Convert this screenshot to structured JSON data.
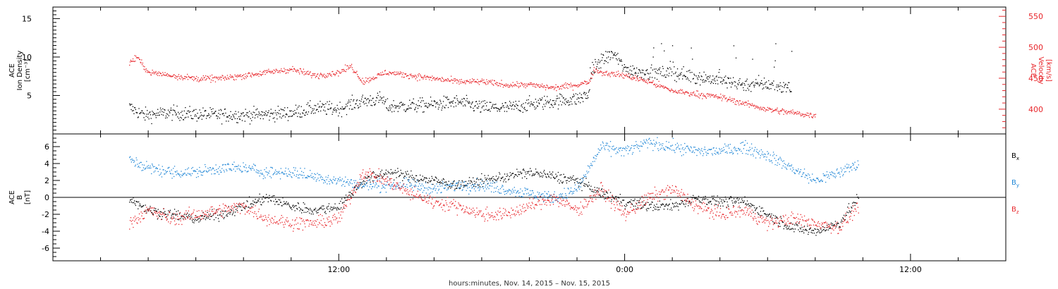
{
  "chart_data": [
    {
      "type": "scatter",
      "panel": "top",
      "ylabel": [
        "ACE",
        "Ion Density",
        "[cm⁻³]"
      ],
      "ylim": [
        0,
        16.5
      ],
      "yticks": [
        5,
        10,
        15
      ],
      "y2label": [
        "ACE",
        "Velocity",
        "[km/s]"
      ],
      "y2lim": [
        360,
        565
      ],
      "y2ticks": [
        400,
        450,
        500,
        550
      ],
      "xticks": [
        {
          "t": 12,
          "label": "12:00"
        },
        {
          "t": 24,
          "label": "0:00"
        },
        {
          "t": 36,
          "label": "12:00"
        }
      ],
      "series": [
        {
          "key": "density",
          "axis": "left",
          "color": "#000000",
          "anchors": [
            [
              3.2,
              3.5
            ],
            [
              3.8,
              2.5
            ],
            [
              5,
              2.8
            ],
            [
              6,
              2.6
            ],
            [
              7,
              2.5
            ],
            [
              8,
              2.5
            ],
            [
              9,
              2.6
            ],
            [
              10,
              2.8
            ],
            [
              11,
              3.4
            ],
            [
              12,
              3.3
            ],
            [
              12.5,
              3.9
            ],
            [
              13,
              4.3
            ],
            [
              13.8,
              4.6
            ],
            [
              14,
              3.6
            ],
            [
              15,
              3.7
            ],
            [
              16,
              3.9
            ],
            [
              17,
              4.2
            ],
            [
              18,
              3.5
            ],
            [
              19,
              3.4
            ],
            [
              20,
              3.9
            ],
            [
              21,
              4.3
            ],
            [
              22,
              4.6
            ],
            [
              22.5,
              5.2
            ],
            [
              22.6,
              8.5
            ],
            [
              23,
              9.5
            ],
            [
              23.5,
              10.5
            ],
            [
              24,
              8.5
            ],
            [
              25,
              8
            ],
            [
              26,
              8
            ],
            [
              27,
              7.5
            ],
            [
              28,
              7
            ],
            [
              29,
              6.5
            ],
            [
              30,
              6.5
            ],
            [
              31,
              6
            ]
          ],
          "noise": 1.3,
          "npoints": 1200
        },
        {
          "key": "velocity",
          "axis": "right",
          "color": "#e8262b",
          "anchors": [
            [
              3.2,
              475
            ],
            [
              3.5,
              485
            ],
            [
              4,
              460
            ],
            [
              5,
              455
            ],
            [
              6,
              450
            ],
            [
              7,
              450
            ],
            [
              8,
              455
            ],
            [
              9,
              460
            ],
            [
              10,
              465
            ],
            [
              11,
              455
            ],
            [
              12,
              460
            ],
            [
              12.5,
              470
            ],
            [
              13,
              445
            ],
            [
              14,
              460
            ],
            [
              15,
              455
            ],
            [
              16,
              450
            ],
            [
              17,
              445
            ],
            [
              18,
              445
            ],
            [
              19,
              440
            ],
            [
              20,
              440
            ],
            [
              21,
              435
            ],
            [
              22,
              440
            ],
            [
              22.5,
              445
            ],
            [
              22.7,
              465
            ],
            [
              23,
              460
            ],
            [
              24,
              455
            ],
            [
              25,
              445
            ],
            [
              26,
              430
            ],
            [
              27,
              425
            ],
            [
              28,
              420
            ],
            [
              29,
              410
            ],
            [
              30,
              400
            ],
            [
              31,
              395
            ],
            [
              32,
              390
            ]
          ],
          "noise": 7,
          "npoints": 1200
        }
      ]
    },
    {
      "type": "scatter",
      "panel": "bottom",
      "ylabel": [
        "ACE",
        "B",
        "[nT]"
      ],
      "ylim": [
        -7.5,
        7.5
      ],
      "yticks": [
        -6,
        -4,
        -2,
        0,
        2,
        4,
        6
      ],
      "zero_line": true,
      "xticks": [
        {
          "t": 12,
          "label": "12:00"
        },
        {
          "t": 24,
          "label": "0:00"
        },
        {
          "t": 36,
          "label": "12:00"
        }
      ],
      "series": [
        {
          "key": "bx",
          "name": "B",
          "sub": "x",
          "color": "#000000",
          "anchors": [
            [
              3.2,
              0
            ],
            [
              4,
              -1.5
            ],
            [
              5,
              -2
            ],
            [
              6,
              -2.5
            ],
            [
              7,
              -2
            ],
            [
              8,
              -1
            ],
            [
              9,
              0
            ],
            [
              10,
              -1
            ],
            [
              11,
              -1.5
            ],
            [
              12,
              -1
            ],
            [
              13,
              2
            ],
            [
              14,
              3
            ],
            [
              15,
              2.5
            ],
            [
              16,
              2
            ],
            [
              17,
              1.5
            ],
            [
              18,
              2
            ],
            [
              19,
              2.5
            ],
            [
              20,
              3
            ],
            [
              21,
              2.5
            ],
            [
              22,
              2
            ],
            [
              23,
              0.5
            ],
            [
              24,
              -0.5
            ],
            [
              25,
              -1
            ],
            [
              26,
              -1
            ],
            [
              27,
              0
            ],
            [
              28,
              -0.5
            ],
            [
              29,
              -0.5
            ],
            [
              30,
              -2
            ],
            [
              31,
              -3.5
            ],
            [
              32,
              -4
            ],
            [
              33,
              -3
            ],
            [
              33.8,
              0
            ]
          ],
          "noise": 0.9,
          "npoints": 1200
        },
        {
          "key": "by",
          "name": "B",
          "sub": "y",
          "color": "#1f86d6",
          "anchors": [
            [
              3.2,
              4.5
            ],
            [
              4,
              3.5
            ],
            [
              5,
              3
            ],
            [
              6,
              3
            ],
            [
              7,
              3.5
            ],
            [
              8,
              3.5
            ],
            [
              9,
              3
            ],
            [
              10,
              3
            ],
            [
              11,
              2.5
            ],
            [
              12,
              2
            ],
            [
              13,
              1.5
            ],
            [
              14,
              1.5
            ],
            [
              15,
              1.5
            ],
            [
              16,
              1
            ],
            [
              17,
              1.5
            ],
            [
              18,
              1.5
            ],
            [
              19,
              1
            ],
            [
              20,
              0.5
            ],
            [
              21,
              0
            ],
            [
              22,
              1
            ],
            [
              23,
              6
            ],
            [
              24,
              5.5
            ],
            [
              25,
              6.5
            ],
            [
              26,
              6
            ],
            [
              27,
              5.5
            ],
            [
              28,
              5.5
            ],
            [
              29,
              6
            ],
            [
              30,
              5
            ],
            [
              31,
              3.5
            ],
            [
              32,
              2
            ],
            [
              33,
              3
            ],
            [
              33.8,
              4
            ]
          ],
          "noise": 1.0,
          "npoints": 1200
        },
        {
          "key": "bz",
          "name": "B",
          "sub": "z",
          "color": "#e8262b",
          "anchors": [
            [
              3.2,
              -3
            ],
            [
              4,
              -1.5
            ],
            [
              5,
              -2.5
            ],
            [
              6,
              -2
            ],
            [
              7,
              -1.5
            ],
            [
              8,
              -1
            ],
            [
              9,
              -2.5
            ],
            [
              10,
              -3
            ],
            [
              11,
              -3
            ],
            [
              12,
              -2.5
            ],
            [
              13,
              3
            ],
            [
              14,
              2
            ],
            [
              15,
              0.5
            ],
            [
              16,
              -0.5
            ],
            [
              17,
              -1
            ],
            [
              18,
              -2
            ],
            [
              19,
              -2
            ],
            [
              20,
              -1
            ],
            [
              21,
              0
            ],
            [
              22,
              -1.5
            ],
            [
              23,
              1
            ],
            [
              24,
              -2
            ],
            [
              25,
              0
            ],
            [
              26,
              1
            ],
            [
              27,
              -1
            ],
            [
              28,
              -2
            ],
            [
              29,
              -1.5
            ],
            [
              30,
              -3
            ],
            [
              31,
              -2.5
            ],
            [
              32,
              -3
            ],
            [
              33,
              -3.5
            ],
            [
              33.8,
              -1
            ]
          ],
          "noise": 1.1,
          "npoints": 1200
        }
      ]
    }
  ],
  "xlabel": "hours:minutes, Nov. 14, 2015 – Nov. 15, 2015",
  "xlim": [
    0,
    40.0
  ],
  "minor_xtick_hours": 2
}
